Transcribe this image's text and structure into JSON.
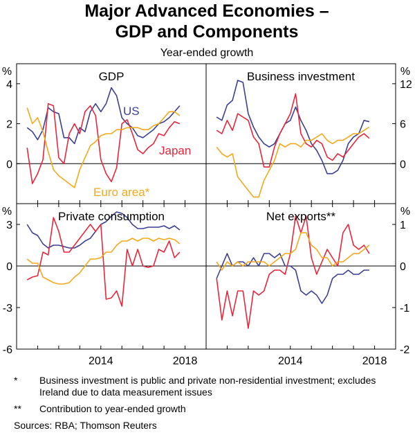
{
  "title_line1": "Major Advanced Economies –",
  "title_line2": "GDP and Components",
  "subtitle": "Year-ended growth",
  "notes": [
    {
      "mark": "*",
      "text": "Business investment is public and private non-residential investment; excludes Ireland due to data measurement issues"
    },
    {
      "mark": "**",
      "text": "Contribution to year-ended growth"
    }
  ],
  "sources": "Sources: RBA; Thomson Reuters",
  "colors": {
    "us": "#3b3f94",
    "japan": "#e8263b",
    "euro": "#f5a81c",
    "frame": "#000000",
    "grid": "#000000"
  },
  "chart_data": [
    {
      "type": "line",
      "title": "GDP",
      "unit": "%",
      "ylim": [
        -2,
        5
      ],
      "ticks": [
        0,
        2,
        4
      ],
      "axis_side": "left",
      "xlim": [
        2010,
        2019
      ],
      "x_ticks": [
        2014,
        2018
      ],
      "x": [
        2010.5,
        2010.75,
        2011.0,
        2011.25,
        2011.5,
        2011.75,
        2012.0,
        2012.25,
        2012.5,
        2012.75,
        2013.0,
        2013.25,
        2013.5,
        2013.75,
        2014.0,
        2014.25,
        2014.5,
        2014.75,
        2015.0,
        2015.25,
        2015.5,
        2015.75,
        2016.0,
        2016.25,
        2016.5,
        2016.75,
        2017.0,
        2017.25,
        2017.5,
        2017.75
      ],
      "series": [
        {
          "name": "US",
          "key": "us",
          "label_pos": "top",
          "values": [
            1.8,
            1.6,
            1.2,
            1.7,
            2.8,
            2.6,
            2.5,
            1.3,
            1.3,
            1.0,
            1.8,
            1.6,
            2.6,
            3.0,
            2.6,
            3.0,
            3.8,
            3.4,
            2.3,
            2.0,
            1.8,
            1.4,
            1.3,
            1.5,
            1.7,
            2.0,
            2.1,
            2.3,
            2.6,
            2.9
          ]
        },
        {
          "name": "Japan",
          "key": "japan",
          "label_pos": "middle",
          "values": [
            0.8,
            -1.0,
            -0.5,
            0.2,
            3.0,
            2.9,
            0.3,
            0.0,
            1.5,
            2.0,
            1.5,
            2.6,
            2.9,
            2.4,
            0.2,
            -0.5,
            -0.9,
            -0.2,
            2.0,
            2.2,
            1.5,
            0.7,
            0.5,
            0.8,
            1.0,
            1.5,
            1.4,
            1.8,
            2.1,
            2.0
          ]
        },
        {
          "name": "Euro area*",
          "key": "euro",
          "label_pos": "bottom",
          "values": [
            2.8,
            2.0,
            2.3,
            1.6,
            0.6,
            -0.3,
            -0.6,
            -0.8,
            -1.0,
            -1.2,
            -0.3,
            0.3,
            0.9,
            1.1,
            1.4,
            1.5,
            1.5,
            1.7,
            1.7,
            1.8,
            1.8,
            1.8,
            1.7,
            1.7,
            1.9,
            2.0,
            2.3,
            2.6,
            2.6,
            2.4
          ]
        }
      ]
    },
    {
      "type": "line",
      "title": "Business investment",
      "unit": "%",
      "ylim": [
        -6,
        15
      ],
      "ticks": [
        0,
        6,
        12
      ],
      "axis_side": "right",
      "xlim": [
        2010,
        2019
      ],
      "x_ticks": [],
      "x": [
        2010.5,
        2010.75,
        2011.0,
        2011.25,
        2011.5,
        2011.75,
        2012.0,
        2012.25,
        2012.5,
        2012.75,
        2013.0,
        2013.25,
        2013.5,
        2013.75,
        2014.0,
        2014.25,
        2014.5,
        2014.75,
        2015.0,
        2015.25,
        2015.5,
        2015.75,
        2016.0,
        2016.25,
        2016.5,
        2016.75,
        2017.0,
        2017.25,
        2017.5,
        2017.75
      ],
      "series": [
        {
          "name": "US",
          "key": "us",
          "values": [
            7.0,
            6.5,
            8.8,
            9.5,
            12.5,
            12.2,
            7.5,
            5.5,
            4.0,
            3.0,
            2.5,
            3.0,
            4.5,
            6.0,
            6.5,
            8.5,
            6.5,
            5.0,
            3.0,
            2.0,
            0.5,
            -1.5,
            -1.5,
            -1.0,
            0.5,
            3.0,
            4.0,
            4.5,
            6.5,
            6.3
          ]
        },
        {
          "name": "Japan",
          "key": "japan",
          "values": [
            5.0,
            4.5,
            6.5,
            5.0,
            7.5,
            7.0,
            6.5,
            4.0,
            3.0,
            -0.5,
            -0.5,
            2.5,
            4.5,
            6.0,
            7.5,
            10.5,
            4.5,
            3.0,
            2.5,
            3.5,
            3.0,
            1.0,
            0.5,
            1.5,
            1.0,
            2.0,
            3.0,
            4.0,
            4.5,
            3.8
          ]
        },
        {
          "name": "Euro area*",
          "key": "euro",
          "values": [
            2.5,
            1.5,
            1.0,
            1.5,
            -2.0,
            -3.0,
            -4.0,
            -5.0,
            -5.0,
            -2.5,
            -1.0,
            0.5,
            3.0,
            2.5,
            3.0,
            3.0,
            2.5,
            3.5,
            3.5,
            4.0,
            4.5,
            3.5,
            3.0,
            3.5,
            3.5,
            4.0,
            4.5,
            4.5,
            5.0,
            5.5
          ]
        }
      ]
    },
    {
      "type": "line",
      "title": "Private consumption",
      "unit": "%",
      "ylim": [
        -6,
        4.5
      ],
      "ticks": [
        -6,
        -3,
        0,
        3
      ],
      "axis_side": "left",
      "xlim": [
        2010,
        2019
      ],
      "x_ticks": [
        2014,
        2018
      ],
      "x": [
        2010.5,
        2010.75,
        2011.0,
        2011.25,
        2011.5,
        2011.75,
        2012.0,
        2012.25,
        2012.5,
        2012.75,
        2013.0,
        2013.25,
        2013.5,
        2013.75,
        2014.0,
        2014.25,
        2014.5,
        2014.75,
        2015.0,
        2015.25,
        2015.5,
        2015.75,
        2016.0,
        2016.25,
        2016.5,
        2016.75,
        2017.0,
        2017.25,
        2017.5,
        2017.75
      ],
      "series": [
        {
          "name": "US",
          "key": "us",
          "values": [
            3.0,
            2.4,
            2.2,
            1.6,
            1.3,
            1.5,
            1.5,
            1.4,
            1.3,
            1.3,
            1.5,
            1.8,
            2.0,
            2.5,
            3.0,
            3.2,
            3.6,
            3.9,
            3.8,
            3.5,
            3.0,
            2.7,
            2.7,
            2.8,
            2.8,
            2.8,
            2.9,
            2.7,
            2.9,
            2.6
          ]
        },
        {
          "name": "Japan",
          "key": "japan",
          "values": [
            -1.0,
            -0.8,
            -0.7,
            1.0,
            0.8,
            3.5,
            2.5,
            1.0,
            1.0,
            1.5,
            2.0,
            2.5,
            3.0,
            2.5,
            3.0,
            -2.4,
            -2.3,
            -1.8,
            -2.9,
            1.2,
            0.0,
            1.2,
            0.0,
            -0.1,
            0.0,
            1.2,
            1.0,
            1.8,
            0.6,
            1.0
          ]
        },
        {
          "name": "Euro area*",
          "key": "euro",
          "values": [
            0.5,
            0.2,
            0.2,
            -0.8,
            -1.0,
            -1.2,
            -1.3,
            -1.3,
            -1.2,
            -0.8,
            -0.5,
            0.0,
            0.5,
            0.5,
            0.6,
            1.0,
            1.0,
            1.5,
            1.8,
            1.8,
            2.0,
            1.8,
            2.0,
            2.0,
            1.8,
            2.0,
            1.9,
            2.0,
            1.9,
            1.6
          ]
        }
      ]
    },
    {
      "type": "line",
      "title": "Net exports**",
      "unit": "%",
      "ylim": [
        -2,
        1.5
      ],
      "ticks": [
        -2,
        -1,
        0,
        1
      ],
      "axis_side": "right",
      "xlim": [
        2010,
        2019
      ],
      "x_ticks": [
        2014,
        2018
      ],
      "x": [
        2010.5,
        2010.75,
        2011.0,
        2011.25,
        2011.5,
        2011.75,
        2012.0,
        2012.25,
        2012.5,
        2012.75,
        2013.0,
        2013.25,
        2013.5,
        2013.75,
        2014.0,
        2014.25,
        2014.5,
        2014.75,
        2015.0,
        2015.25,
        2015.5,
        2015.75,
        2016.0,
        2016.25,
        2016.5,
        2016.75,
        2017.0,
        2017.25,
        2017.5,
        2017.75
      ],
      "series": [
        {
          "name": "US",
          "key": "us",
          "values": [
            -0.3,
            0.0,
            0.3,
            0.0,
            0.1,
            0.1,
            0.0,
            0.2,
            0.0,
            0.3,
            0.3,
            0.2,
            0.3,
            0.0,
            0.0,
            -0.1,
            -0.6,
            -0.7,
            -0.6,
            -0.7,
            -0.9,
            -0.7,
            -0.3,
            -0.2,
            -0.2,
            -0.1,
            -0.2,
            -0.2,
            -0.1,
            -0.1
          ]
        },
        {
          "name": "Japan",
          "key": "japan",
          "values": [
            -0.3,
            -1.3,
            -0.6,
            -1.2,
            -0.6,
            -0.6,
            -1.5,
            -0.6,
            -0.7,
            -0.6,
            -0.2,
            -0.1,
            -0.1,
            -0.2,
            0.3,
            1.2,
            0.8,
            1.2,
            0.2,
            -0.2,
            0.1,
            0.4,
            0.2,
            0.0,
            0.8,
            1.0,
            0.5,
            0.4,
            0.5,
            0.3
          ]
        },
        {
          "name": "Euro area*",
          "key": "euro",
          "values": [
            0.1,
            -0.1,
            0.1,
            0.0,
            0.1,
            0.0,
            0.1,
            0.1,
            0.1,
            0.1,
            0.0,
            0.1,
            0.2,
            0.3,
            0.3,
            0.4,
            0.8,
            0.8,
            0.5,
            0.4,
            0.2,
            0.2,
            0.0,
            0.1,
            0.1,
            0.2,
            0.3,
            0.3,
            0.4,
            0.5
          ]
        }
      ]
    }
  ]
}
